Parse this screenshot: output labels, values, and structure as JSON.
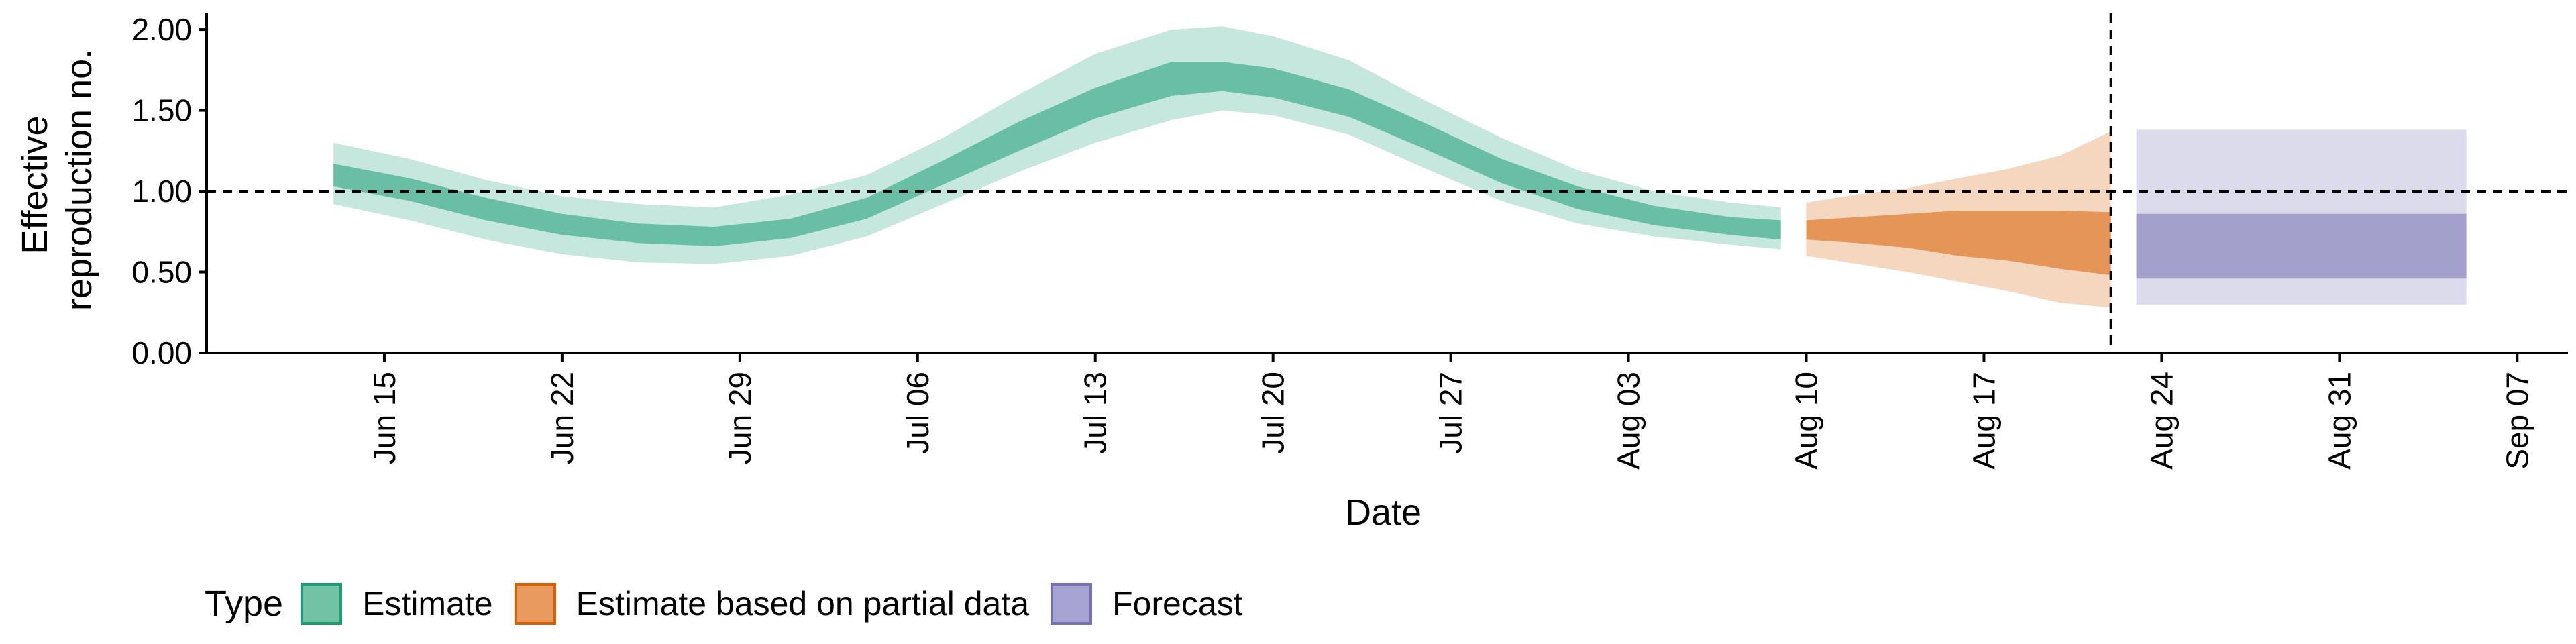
{
  "chart_data": {
    "type": "area",
    "ylabel_lines": [
      "Effective",
      "reproduction no."
    ],
    "xlabel": "Date",
    "ylim": [
      0,
      2.1
    ],
    "yticks": [
      0,
      0.5,
      1.0,
      1.5,
      2.0
    ],
    "ytick_labels": [
      "0.00",
      "0.50",
      "1.00",
      "1.50",
      "2.00"
    ],
    "xlim": [
      "2020-06-08",
      "2020-09-09"
    ],
    "xticks": [
      "2020-06-15",
      "2020-06-22",
      "2020-06-29",
      "2020-07-06",
      "2020-07-13",
      "2020-07-20",
      "2020-07-27",
      "2020-08-03",
      "2020-08-10",
      "2020-08-17",
      "2020-08-24",
      "2020-08-31",
      "2020-09-07"
    ],
    "xtick_labels": [
      "Jun 15",
      "Jun 22",
      "Jun 29",
      "Jul 06",
      "Jul 13",
      "Jul 20",
      "Jul 27",
      "Aug 03",
      "Aug 10",
      "Aug 17",
      "Aug 24",
      "Aug 31",
      "Sep 07"
    ],
    "reference_hline": 1.0,
    "reference_vline": "2020-08-22",
    "series": [
      {
        "name": "Estimate",
        "color": "#1b9e77",
        "x": [
          "2020-06-13",
          "2020-06-16",
          "2020-06-19",
          "2020-06-22",
          "2020-06-25",
          "2020-06-28",
          "2020-07-01",
          "2020-07-04",
          "2020-07-07",
          "2020-07-10",
          "2020-07-13",
          "2020-07-16",
          "2020-07-18",
          "2020-07-20",
          "2020-07-23",
          "2020-07-26",
          "2020-07-29",
          "2020-08-01",
          "2020-08-04",
          "2020-08-07",
          "2020-08-09"
        ],
        "lower90": [
          0.92,
          0.82,
          0.7,
          0.61,
          0.56,
          0.55,
          0.6,
          0.72,
          0.92,
          1.12,
          1.3,
          1.44,
          1.5,
          1.47,
          1.35,
          1.14,
          0.94,
          0.8,
          0.72,
          0.67,
          0.64
        ],
        "upper90": [
          1.3,
          1.2,
          1.07,
          0.97,
          0.92,
          0.9,
          0.98,
          1.1,
          1.33,
          1.6,
          1.85,
          2.0,
          2.02,
          1.96,
          1.81,
          1.56,
          1.33,
          1.13,
          1.0,
          0.93,
          0.9
        ],
        "lower50": [
          1.03,
          0.94,
          0.82,
          0.73,
          0.68,
          0.66,
          0.71,
          0.83,
          1.04,
          1.25,
          1.45,
          1.59,
          1.62,
          1.58,
          1.46,
          1.26,
          1.05,
          0.89,
          0.79,
          0.73,
          0.7
        ],
        "upper50": [
          1.17,
          1.08,
          0.96,
          0.86,
          0.8,
          0.78,
          0.83,
          0.96,
          1.19,
          1.43,
          1.64,
          1.8,
          1.8,
          1.76,
          1.63,
          1.42,
          1.2,
          1.03,
          0.91,
          0.84,
          0.82
        ]
      },
      {
        "name": "Estimate based on partial data",
        "color": "#d95f02",
        "x": [
          "2020-08-10",
          "2020-08-12",
          "2020-08-14",
          "2020-08-16",
          "2020-08-18",
          "2020-08-20",
          "2020-08-22"
        ],
        "lower90": [
          0.6,
          0.55,
          0.5,
          0.44,
          0.38,
          0.31,
          0.28
        ],
        "upper90": [
          0.93,
          0.98,
          1.02,
          1.08,
          1.14,
          1.22,
          1.37
        ],
        "lower50": [
          0.7,
          0.68,
          0.65,
          0.6,
          0.57,
          0.52,
          0.48
        ],
        "upper50": [
          0.82,
          0.84,
          0.86,
          0.88,
          0.88,
          0.88,
          0.87
        ]
      },
      {
        "name": "Forecast",
        "color": "#7570b3",
        "x": [
          "2020-08-23",
          "2020-09-05"
        ],
        "lower90": [
          0.3,
          0.3
        ],
        "upper90": [
          1.38,
          1.38
        ],
        "lower50": [
          0.46,
          0.46
        ],
        "upper50": [
          0.86,
          0.86
        ]
      }
    ]
  },
  "legend": {
    "title": "Type",
    "items": [
      {
        "label": "Estimate",
        "fill": "#72c2a6",
        "border": "#1b9e77"
      },
      {
        "label": "Estimate based on partial data",
        "fill": "#e99a5f",
        "border": "#d95f02"
      },
      {
        "label": "Forecast",
        "fill": "#a7a3d3",
        "border": "#7570b3"
      }
    ]
  }
}
